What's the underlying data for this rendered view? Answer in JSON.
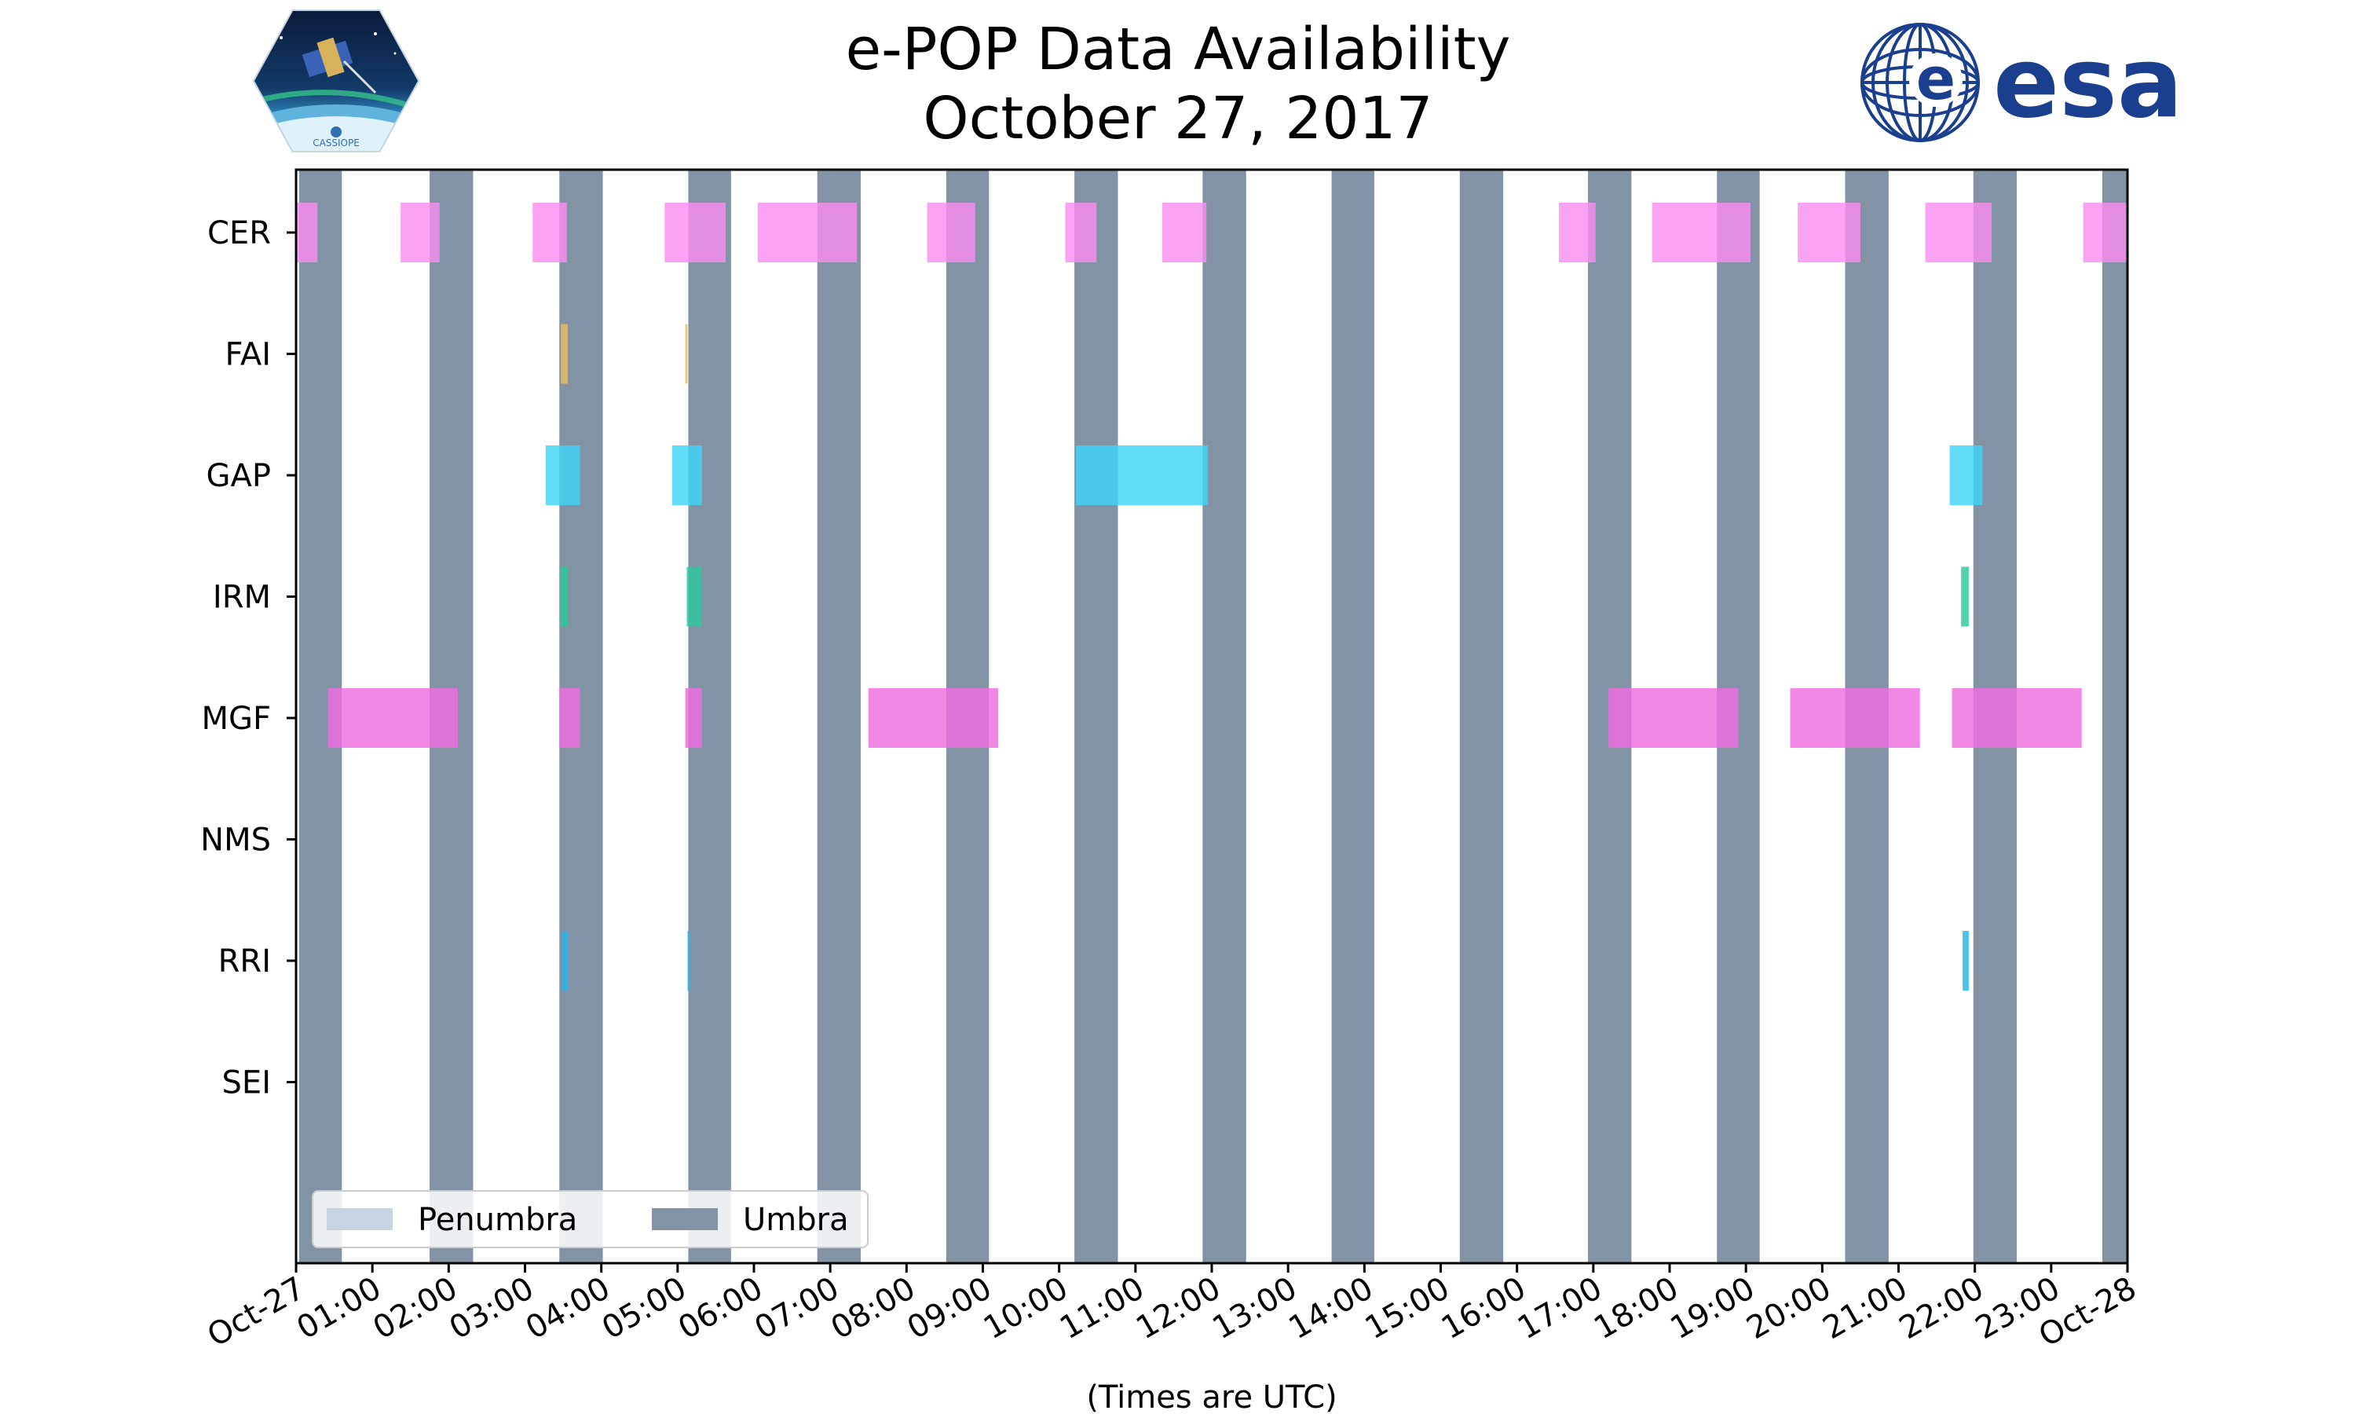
{
  "title": {
    "line1": "e-POP Data Availability",
    "line2": "October 27, 2017"
  },
  "logos": {
    "left": {
      "name": "cassiope-mission-logo",
      "text": "CASSIOPE"
    },
    "right": {
      "name": "esa-logo",
      "text": "esa"
    }
  },
  "colors": {
    "umbra": "#8393a6",
    "penumbra": "#c8d4e3",
    "CER": "#f98ef0",
    "FAI": "#e8c064",
    "GAP": "#3ed6f8",
    "IRM": "#2cc99a",
    "MGF": "#ee6ee0",
    "RRI": "#25b4e6",
    "frame": "#000000"
  },
  "chart_data": {
    "type": "timeline",
    "title": "e-POP Data Availability October 27, 2017",
    "xlabel": "(Times are UTC)",
    "x_unit": "hours UTC",
    "xlim": [
      0,
      24
    ],
    "x_tick_labels": [
      "Oct-27",
      "01:00",
      "02:00",
      "03:00",
      "04:00",
      "05:00",
      "06:00",
      "07:00",
      "08:00",
      "09:00",
      "10:00",
      "11:00",
      "12:00",
      "13:00",
      "14:00",
      "15:00",
      "16:00",
      "17:00",
      "18:00",
      "19:00",
      "20:00",
      "21:00",
      "22:00",
      "23:00",
      "Oct-28"
    ],
    "instruments": [
      "CER",
      "FAI",
      "GAP",
      "IRM",
      "MGF",
      "NMS",
      "RRI",
      "SEI"
    ],
    "umbra": [
      [
        0.04,
        0.6
      ],
      [
        1.75,
        2.32
      ],
      [
        3.45,
        4.02
      ],
      [
        5.14,
        5.7
      ],
      [
        6.83,
        7.4
      ],
      [
        8.52,
        9.08
      ],
      [
        10.2,
        10.77
      ],
      [
        11.88,
        12.45
      ],
      [
        13.57,
        14.13
      ],
      [
        15.25,
        15.82
      ],
      [
        16.93,
        17.5
      ],
      [
        18.62,
        19.18
      ],
      [
        20.3,
        20.87
      ],
      [
        21.98,
        22.55
      ],
      [
        23.67,
        24.0
      ]
    ],
    "series": [
      {
        "name": "CER",
        "intervals": [
          [
            0.0,
            0.28
          ],
          [
            1.37,
            1.88
          ],
          [
            3.1,
            3.55
          ],
          [
            4.83,
            5.63
          ],
          [
            6.05,
            7.35
          ],
          [
            8.27,
            8.9
          ],
          [
            10.08,
            10.49
          ],
          [
            11.35,
            11.93
          ],
          [
            16.55,
            17.03
          ],
          [
            17.77,
            19.06
          ],
          [
            19.68,
            20.5
          ],
          [
            21.35,
            22.22
          ],
          [
            23.42,
            24.2
          ]
        ]
      },
      {
        "name": "FAI",
        "intervals": [
          [
            3.47,
            3.56
          ],
          [
            5.1,
            5.13
          ]
        ]
      },
      {
        "name": "GAP",
        "intervals": [
          [
            3.27,
            3.72
          ],
          [
            4.93,
            5.32
          ],
          [
            10.22,
            11.95
          ],
          [
            21.67,
            22.1
          ]
        ]
      },
      {
        "name": "IRM",
        "intervals": [
          [
            3.46,
            3.56
          ],
          [
            5.12,
            5.32
          ],
          [
            21.82,
            21.92
          ]
        ]
      },
      {
        "name": "MGF",
        "intervals": [
          [
            0.42,
            2.12
          ],
          [
            3.45,
            3.72
          ],
          [
            5.1,
            5.32
          ],
          [
            7.5,
            9.2
          ],
          [
            17.2,
            18.9
          ],
          [
            19.58,
            21.28
          ],
          [
            21.7,
            23.4
          ]
        ]
      },
      {
        "name": "NMS",
        "intervals": []
      },
      {
        "name": "RRI",
        "intervals": [
          [
            3.48,
            3.56
          ],
          [
            5.13,
            5.16
          ],
          [
            21.84,
            21.92
          ]
        ]
      },
      {
        "name": "SEI",
        "intervals": []
      }
    ],
    "legend": {
      "location": "lower-left",
      "entries": [
        {
          "label": "Penumbra",
          "color_key": "penumbra"
        },
        {
          "label": "Umbra",
          "color_key": "umbra"
        }
      ]
    }
  }
}
